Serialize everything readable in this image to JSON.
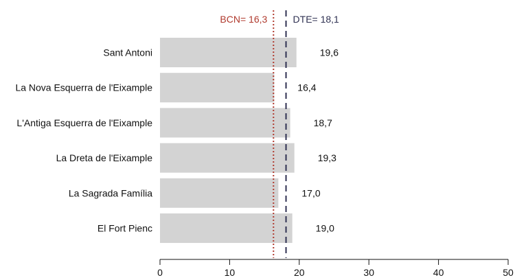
{
  "chart_data": {
    "type": "bar",
    "orientation": "horizontal",
    "categories": [
      "Sant Antoni",
      "La Nova Esquerra de l'Eixample",
      "L'Antiga Esquerra de l'Eixample",
      "La Dreta de l'Eixample",
      "La Sagrada Família",
      "El Fort Pienc"
    ],
    "values": [
      19.6,
      16.4,
      18.7,
      19.3,
      17.0,
      19.0
    ],
    "value_labels": [
      "19,6",
      "16,4",
      "18,7",
      "19,3",
      "17,0",
      "19,0"
    ],
    "xlim": [
      0,
      50
    ],
    "xticks": [
      0,
      10,
      20,
      30,
      40,
      50
    ],
    "grid": false,
    "reference_lines": [
      {
        "label": "BCN= 16,3",
        "value": 16.3,
        "color": "#b03a2e",
        "style": "dotted"
      },
      {
        "label": "DTE= 18,1",
        "value": 18.1,
        "color": "#2f3152",
        "style": "dashed"
      }
    ],
    "bar_color": "#d3d3d3"
  }
}
